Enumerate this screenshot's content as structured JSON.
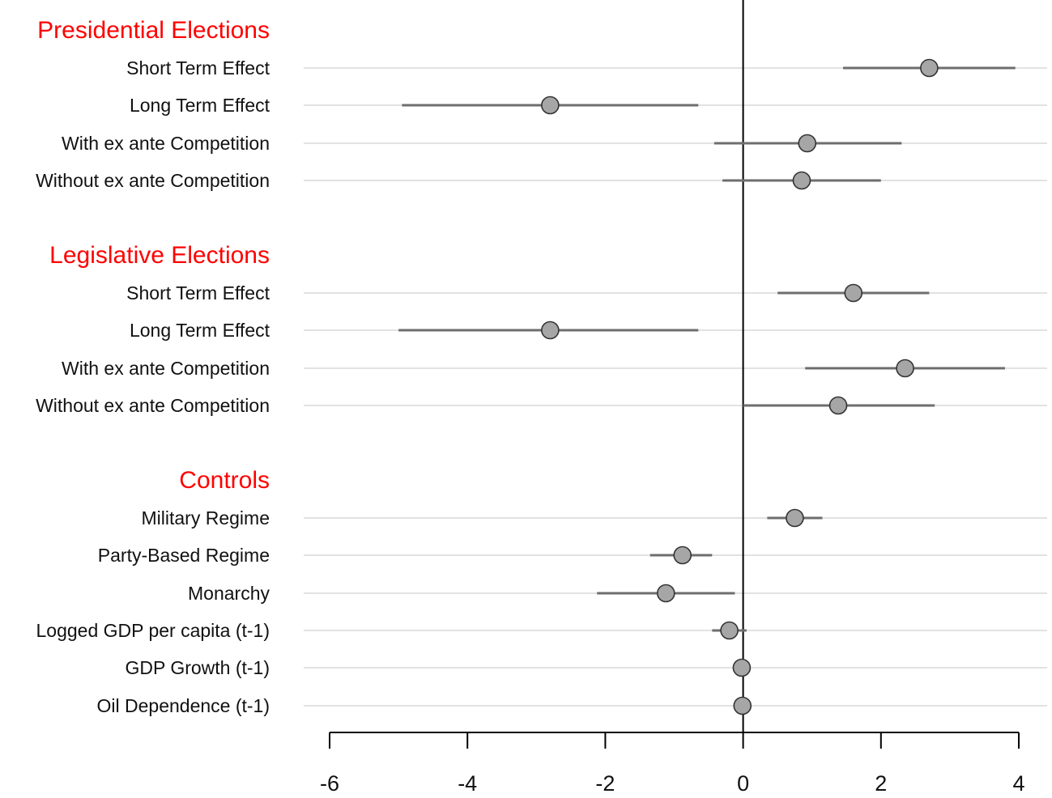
{
  "chart_data": {
    "type": "scatter",
    "subtype": "coefficient-plot-with-intervals",
    "title": "",
    "xlabel": "",
    "ylabel": "",
    "xlim": [
      -6,
      4
    ],
    "xticks": [
      -6,
      -4,
      -2,
      0,
      2,
      4
    ],
    "xtick_labels": [
      "-6",
      "-4",
      "-2",
      "0",
      "2",
      "4"
    ],
    "reference_line_x": 0,
    "grid": "horizontal row guides",
    "colors": {
      "group_label": "#ff0000",
      "point_fill": "#a6a6a6",
      "point_stroke": "#333333",
      "interval": "#6e6e6e",
      "row_guide": "#d9d9d9",
      "axis": "#000000"
    },
    "groups": [
      {
        "label": "Presidential Elections",
        "rows": [
          {
            "label": "Short Term Effect",
            "estimate": 2.7,
            "lower": 1.45,
            "upper": 3.95
          },
          {
            "label": "Long Term Effect",
            "estimate": -2.8,
            "lower": -4.95,
            "upper": -0.65
          },
          {
            "label": "With ex ante Competition",
            "estimate": 0.93,
            "lower": -0.42,
            "upper": 2.3
          },
          {
            "label": "Without ex ante Competition",
            "estimate": 0.85,
            "lower": -0.3,
            "upper": 2.0
          }
        ]
      },
      {
        "label": "Legislative Elections",
        "rows": [
          {
            "label": "Short Term Effect",
            "estimate": 1.6,
            "lower": 0.5,
            "upper": 2.7
          },
          {
            "label": "Long Term Effect",
            "estimate": -2.8,
            "lower": -5.0,
            "upper": -0.65
          },
          {
            "label": "With ex ante Competition",
            "estimate": 2.35,
            "lower": 0.9,
            "upper": 3.8
          },
          {
            "label": "Without ex ante Competition",
            "estimate": 1.38,
            "lower": 0.0,
            "upper": 2.78
          }
        ]
      },
      {
        "label": "Controls",
        "rows": [
          {
            "label": "Military Regime",
            "estimate": 0.75,
            "lower": 0.35,
            "upper": 1.15
          },
          {
            "label": "Party-Based Regime",
            "estimate": -0.88,
            "lower": -1.35,
            "upper": -0.45
          },
          {
            "label": "Monarchy",
            "estimate": -1.12,
            "lower": -2.12,
            "upper": -0.12
          },
          {
            "label": "Logged GDP per capita (t-1)",
            "estimate": -0.2,
            "lower": -0.45,
            "upper": 0.05
          },
          {
            "label": "GDP Growth (t-1)",
            "estimate": -0.02,
            "lower": -0.06,
            "upper": 0.02
          },
          {
            "label": "Oil Dependence (t-1)",
            "estimate": -0.01,
            "lower": -0.04,
            "upper": 0.02
          }
        ]
      }
    ]
  }
}
